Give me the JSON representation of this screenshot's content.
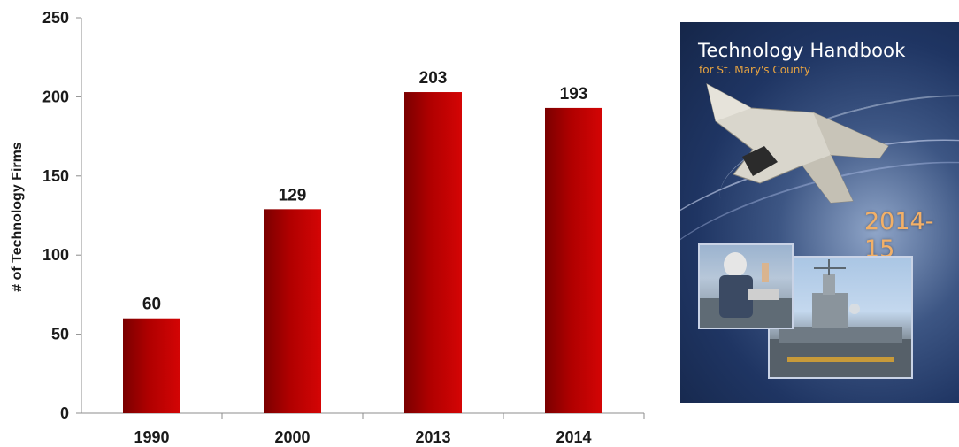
{
  "chart_data": {
    "type": "bar",
    "categories": [
      "1990",
      "2000",
      "2013",
      "2014"
    ],
    "values": [
      60,
      129,
      203,
      193
    ],
    "data_labels": [
      "60",
      "129",
      "203",
      "193"
    ],
    "ylabel": "# of Technology Firms",
    "ylim": [
      0,
      250
    ],
    "yticks": [
      "0",
      "50",
      "100",
      "150",
      "200",
      "250"
    ],
    "grid": false,
    "bar_color": "#c00000"
  },
  "cover": {
    "title": "Technology Handbook",
    "subtitle": "for St. Mary's County",
    "year": "2014-15",
    "accent_color": "#e8a441"
  }
}
